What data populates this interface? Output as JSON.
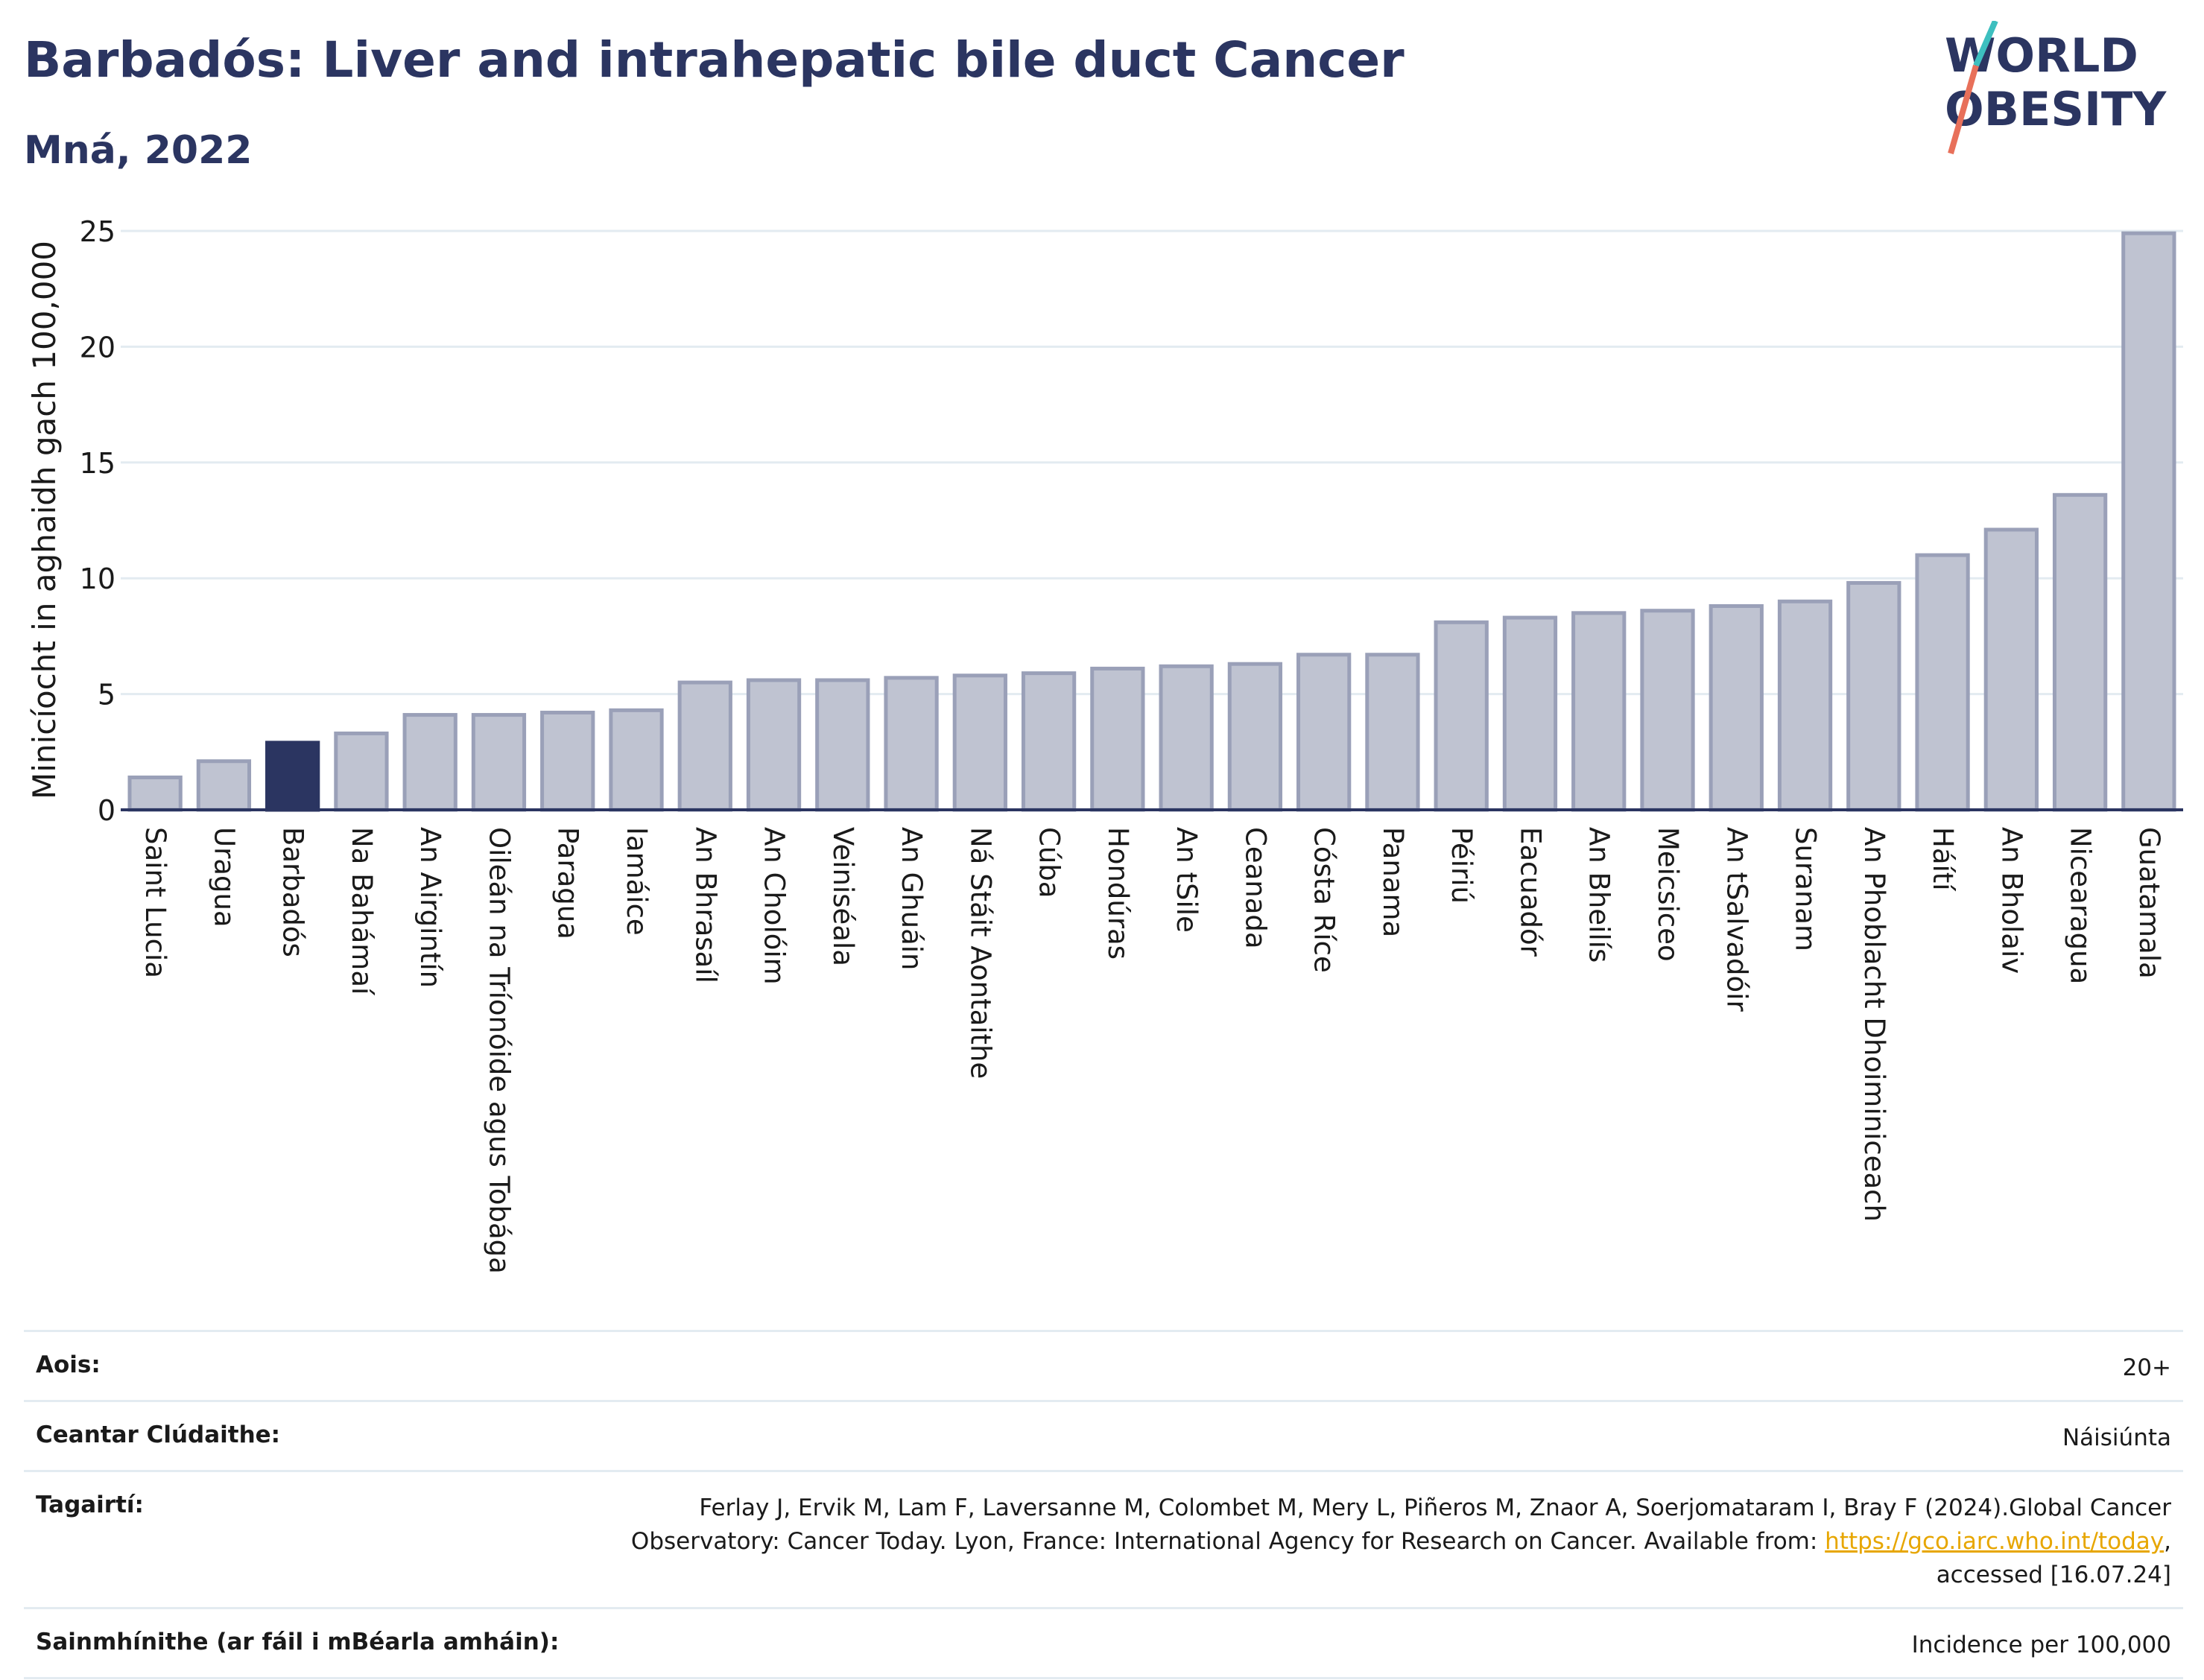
{
  "header": {
    "title": "Barbadós: Liver and intrahepatic bile duct Cancer",
    "subtitle": "Mná, 2022"
  },
  "logo": {
    "line1": "WORLD",
    "line2": "OBESITY",
    "colors": {
      "text": "#2b3561",
      "slash_teal": "#3dbfbf",
      "slash_coral": "#e8705a"
    }
  },
  "colors": {
    "bar_fill": "#bfc3d1",
    "bar_stroke": "#9aa0b8",
    "highlight_fill": "#2b3561",
    "axis": "#2b3561",
    "grid": "#e3ebf1",
    "link": "#e7a600"
  },
  "chart_data": {
    "type": "bar",
    "ylabel": "Minicíocht in aghaidh gach 100,000",
    "ylim": [
      0,
      25
    ],
    "yticks": [
      0,
      5,
      10,
      15,
      20,
      25
    ],
    "grid": true,
    "highlight": "Barbadós",
    "categories": [
      "Saint Lucia",
      "Uragua",
      "Barbadós",
      "Na Bahámaí",
      "An Airgintín",
      "Oileán na Tríonóide agus Tobága",
      "Paragua",
      "Iamáice",
      "An Bhrasaíl",
      "An Cholóim",
      "Veiniséala",
      "An Ghuáin",
      "Ná Stáit Aontaithe",
      "Cúba",
      "Hondúras",
      "An tSile",
      "Ceanada",
      "Cósta Ríce",
      "Panama",
      "Péiriú",
      "Eacuadór",
      "An Bheilís",
      "Meicsiceo",
      "An tSalvadóir",
      "Suranam",
      "An Phoblacht Dhoiminiceach",
      "Háítí",
      "An Bholaiv",
      "Nicearagua",
      "Guatamala"
    ],
    "values": [
      1.4,
      2.1,
      2.9,
      3.3,
      4.1,
      4.1,
      4.2,
      4.3,
      5.5,
      5.6,
      5.6,
      5.7,
      5.8,
      5.9,
      6.1,
      6.2,
      6.3,
      6.7,
      6.7,
      8.1,
      8.3,
      8.5,
      8.6,
      8.8,
      9.0,
      9.8,
      11.0,
      12.1,
      13.6,
      24.9
    ]
  },
  "info": {
    "rows": [
      {
        "label": "Aois:",
        "value": "20+"
      },
      {
        "label": "Ceantar Clúdaithe:",
        "value": "Náisiúnta"
      },
      {
        "label": "Tagairtí:",
        "value_line1": "Ferlay J, Ervik M, Lam F, Laversanne M, Colombet M, Mery L, Piñeros M, Znaor A, Soerjomataram I, Bray F (2024).Global Cancer",
        "value_line2_pre": "Observatory: Cancer Today. Lyon, France: International Agency for Research on Cancer. Available from: ",
        "link": "https://gco.iarc.who.int/today",
        "value_line2_post": ",",
        "value_line3": "accessed [16.07.24]"
      },
      {
        "label": "Sainmhínithe (ar fáil i mBéarla amháin):",
        "value": "Incidence per 100,000"
      }
    ]
  }
}
